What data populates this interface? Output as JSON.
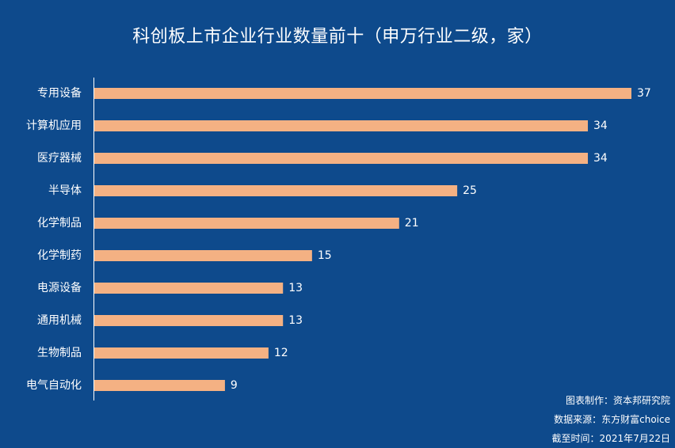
{
  "chart_data": {
    "type": "bar",
    "orientation": "horizontal",
    "title": "科创板上市企业行业数量前十（申万行业二级，家）",
    "categories": [
      "专用设备",
      "计算机应用",
      "医疗器械",
      "半导体",
      "化学制品",
      "化学制药",
      "电源设备",
      "通用机械",
      "生物制品",
      "电气自动化"
    ],
    "values": [
      37,
      34,
      34,
      25,
      21,
      15,
      13,
      13,
      12,
      9
    ],
    "xlim": [
      0,
      37
    ],
    "grid": false,
    "data_labels": true,
    "bar_color": "#f4b183",
    "background_color": "#0e4a8c"
  },
  "footer": {
    "chart_maker": "图表制作：资本邦研究院",
    "source": "数据来源：东方财富choice",
    "cutoff": "截至时间：2021年7月22日"
  }
}
